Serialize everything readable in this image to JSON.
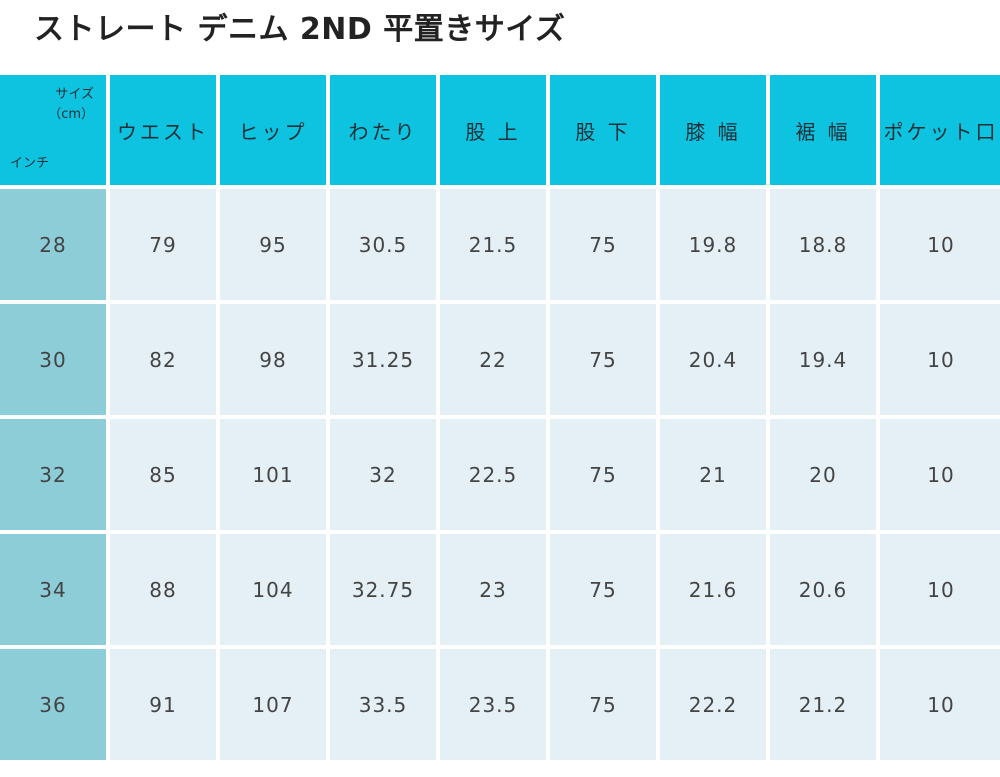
{
  "title": "ストレート デニム 2ND  平置きサイズ",
  "header": {
    "corner_size": "サイズ",
    "corner_unit": "（cm）",
    "corner_inch": "インチ",
    "columns": [
      "ウエスト",
      "ヒップ",
      "わたり",
      "股 上",
      "股 下",
      "膝 幅",
      "裾 幅",
      "ポケット口"
    ]
  },
  "rows": [
    {
      "inch": "28",
      "values": [
        "79",
        "95",
        "30.5",
        "21.5",
        "75",
        "19.8",
        "18.8",
        "10"
      ]
    },
    {
      "inch": "30",
      "values": [
        "82",
        "98",
        "31.25",
        "22",
        "75",
        "20.4",
        "19.4",
        "10"
      ]
    },
    {
      "inch": "32",
      "values": [
        "85",
        "101",
        "32",
        "22.5",
        "75",
        "21",
        "20",
        "10"
      ]
    },
    {
      "inch": "34",
      "values": [
        "88",
        "104",
        "32.75",
        "23",
        "75",
        "21.6",
        "20.6",
        "10"
      ]
    },
    {
      "inch": "36",
      "values": [
        "91",
        "107",
        "33.5",
        "23.5",
        "75",
        "22.2",
        "21.2",
        "10"
      ]
    }
  ],
  "colors": {
    "header_bg": "#0ec3df",
    "inch_col_bg": "#8ccdd8",
    "cell_bg": "#e4f0f5"
  }
}
